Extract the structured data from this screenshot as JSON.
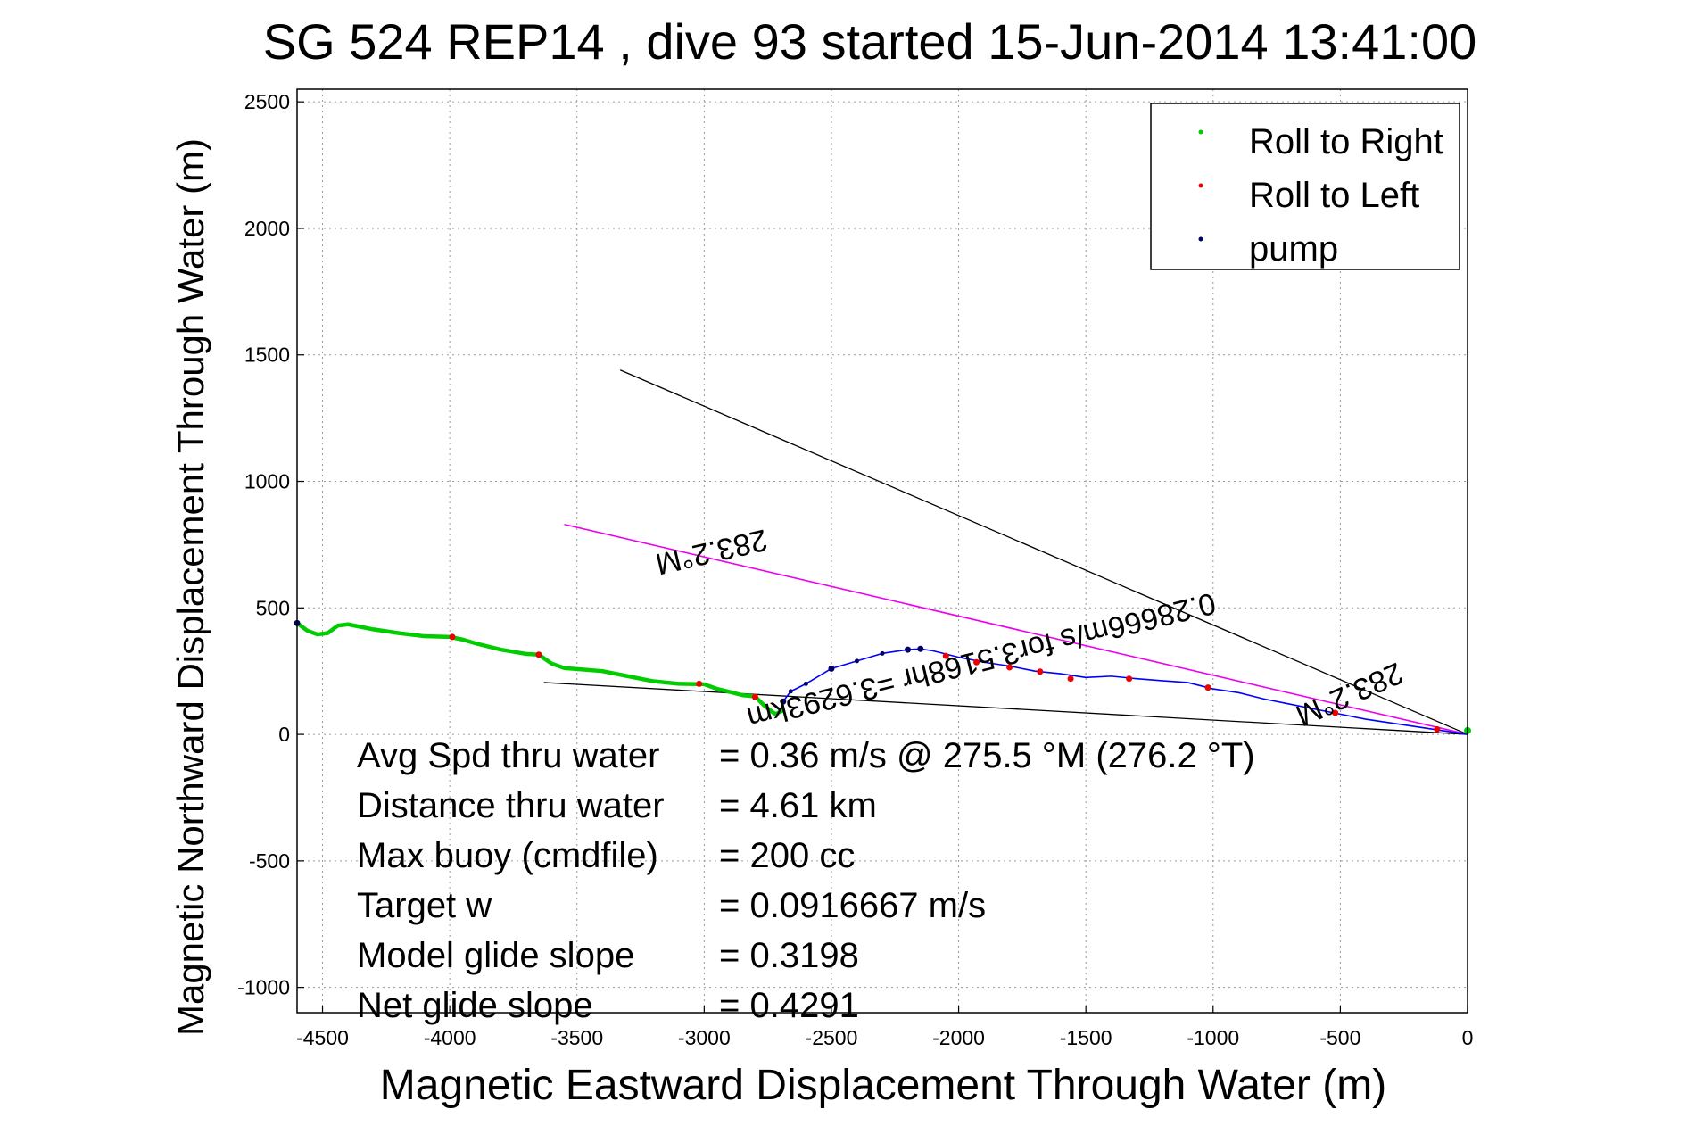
{
  "chart_data": {
    "type": "line",
    "title": "SG 524   REP14  , dive 93 started 15-Jun-2014 13:41:00",
    "xlabel": "Magnetic Eastward Displacement Through Water (m)",
    "ylabel": "Magnetic Northward Displacement Through Water (m)",
    "xlim": [
      -4600,
      0
    ],
    "ylim": [
      -1100,
      2550
    ],
    "x_ticks": [
      -4500,
      -4000,
      -3500,
      -3000,
      -2500,
      -2000,
      -1500,
      -1000,
      -500,
      0
    ],
    "y_ticks": [
      2500,
      2000,
      1500,
      1000,
      500,
      0,
      -500,
      -1000
    ],
    "grid": true,
    "legend_position": "top-right",
    "legend": [
      "Roll to Right",
      "Roll to Left",
      "pump"
    ],
    "colors": {
      "roll_right": "#00cc00",
      "roll_left": "#ee0000",
      "pump": "#000066",
      "track": "#0000ff",
      "course_line": "#ee00ee",
      "reference_lines": "#000000"
    },
    "track_green": {
      "x": [
        -4600,
        -4560,
        -4520,
        -4480,
        -4440,
        -4400,
        -4300,
        -4200,
        -4100,
        -4000,
        -3950,
        -3900,
        -3800,
        -3700,
        -3650,
        -3600,
        -3550,
        -3500,
        -3400,
        -3300,
        -3200,
        -3100,
        -3000,
        -2950,
        -2900,
        -2850,
        -2800,
        -2760,
        -2720,
        -2690
      ],
      "y": [
        440,
        410,
        395,
        400,
        430,
        435,
        415,
        400,
        388,
        385,
        375,
        360,
        335,
        318,
        315,
        280,
        262,
        258,
        250,
        230,
        210,
        200,
        198,
        180,
        168,
        155,
        150,
        110,
        80,
        95
      ]
    },
    "track_blue": {
      "x": [
        -2690,
        -2660,
        -2600,
        -2500,
        -2400,
        -2300,
        -2200,
        -2150,
        -2100,
        -2000,
        -1900,
        -1800,
        -1700,
        -1600,
        -1500,
        -1400,
        -1300,
        -1200,
        -1100,
        -1000,
        -900,
        -800,
        -700,
        -600,
        -500,
        -400,
        -300,
        -200,
        -100,
        0
      ],
      "y": [
        130,
        170,
        200,
        260,
        290,
        320,
        335,
        338,
        330,
        305,
        285,
        270,
        250,
        240,
        225,
        230,
        220,
        212,
        205,
        180,
        165,
        140,
        120,
        100,
        80,
        60,
        45,
        30,
        15,
        0
      ]
    },
    "roll_left_points": {
      "x": [
        -3990,
        -3650,
        -3020,
        -2800,
        -2050,
        -1930,
        -1800,
        -1680,
        -1560,
        -1330,
        -1020,
        -520,
        -120
      ],
      "y": [
        385,
        315,
        200,
        148,
        310,
        285,
        265,
        248,
        220,
        220,
        185,
        85,
        20
      ]
    },
    "pump_points": {
      "x": [
        -4600,
        -2690,
        -2500,
        -2200,
        -2150
      ],
      "y": [
        440,
        130,
        260,
        335,
        338
      ]
    },
    "course_line": {
      "x": [
        -3550,
        0
      ],
      "y": [
        830,
        0
      ]
    },
    "reference_line_upper": {
      "x": [
        -3330,
        0
      ],
      "y": [
        1440,
        0
      ]
    },
    "reference_line_lower": {
      "x": [
        -3630,
        0
      ],
      "y": [
        205,
        0
      ]
    },
    "annotations": [
      {
        "text": "283.2°M",
        "x": -2980,
        "y": 760,
        "rotate": 167
      },
      {
        "text": "0.28666m/s for3.5168hr =3.6293km",
        "x": -1920,
        "y": 330,
        "rotate": 166
      },
      {
        "text": "283.2°M",
        "x": -480,
        "y": 195,
        "rotate": 156
      }
    ],
    "stats": [
      {
        "label": "Avg Spd thru water",
        "value": "=  0.36 m/s @ 275.5 °M (276.2 °T)"
      },
      {
        "label": "Distance thru water",
        "value": "=  4.61 km"
      },
      {
        "label": "Max buoy (cmdfile)",
        "value": "= 200 cc"
      },
      {
        "label": "Target w",
        "value": "= 0.0916667 m/s"
      },
      {
        "label": "Model glide slope",
        "value": "= 0.3198"
      },
      {
        "label": "Net glide slope",
        "value": "= 0.4291"
      }
    ]
  }
}
